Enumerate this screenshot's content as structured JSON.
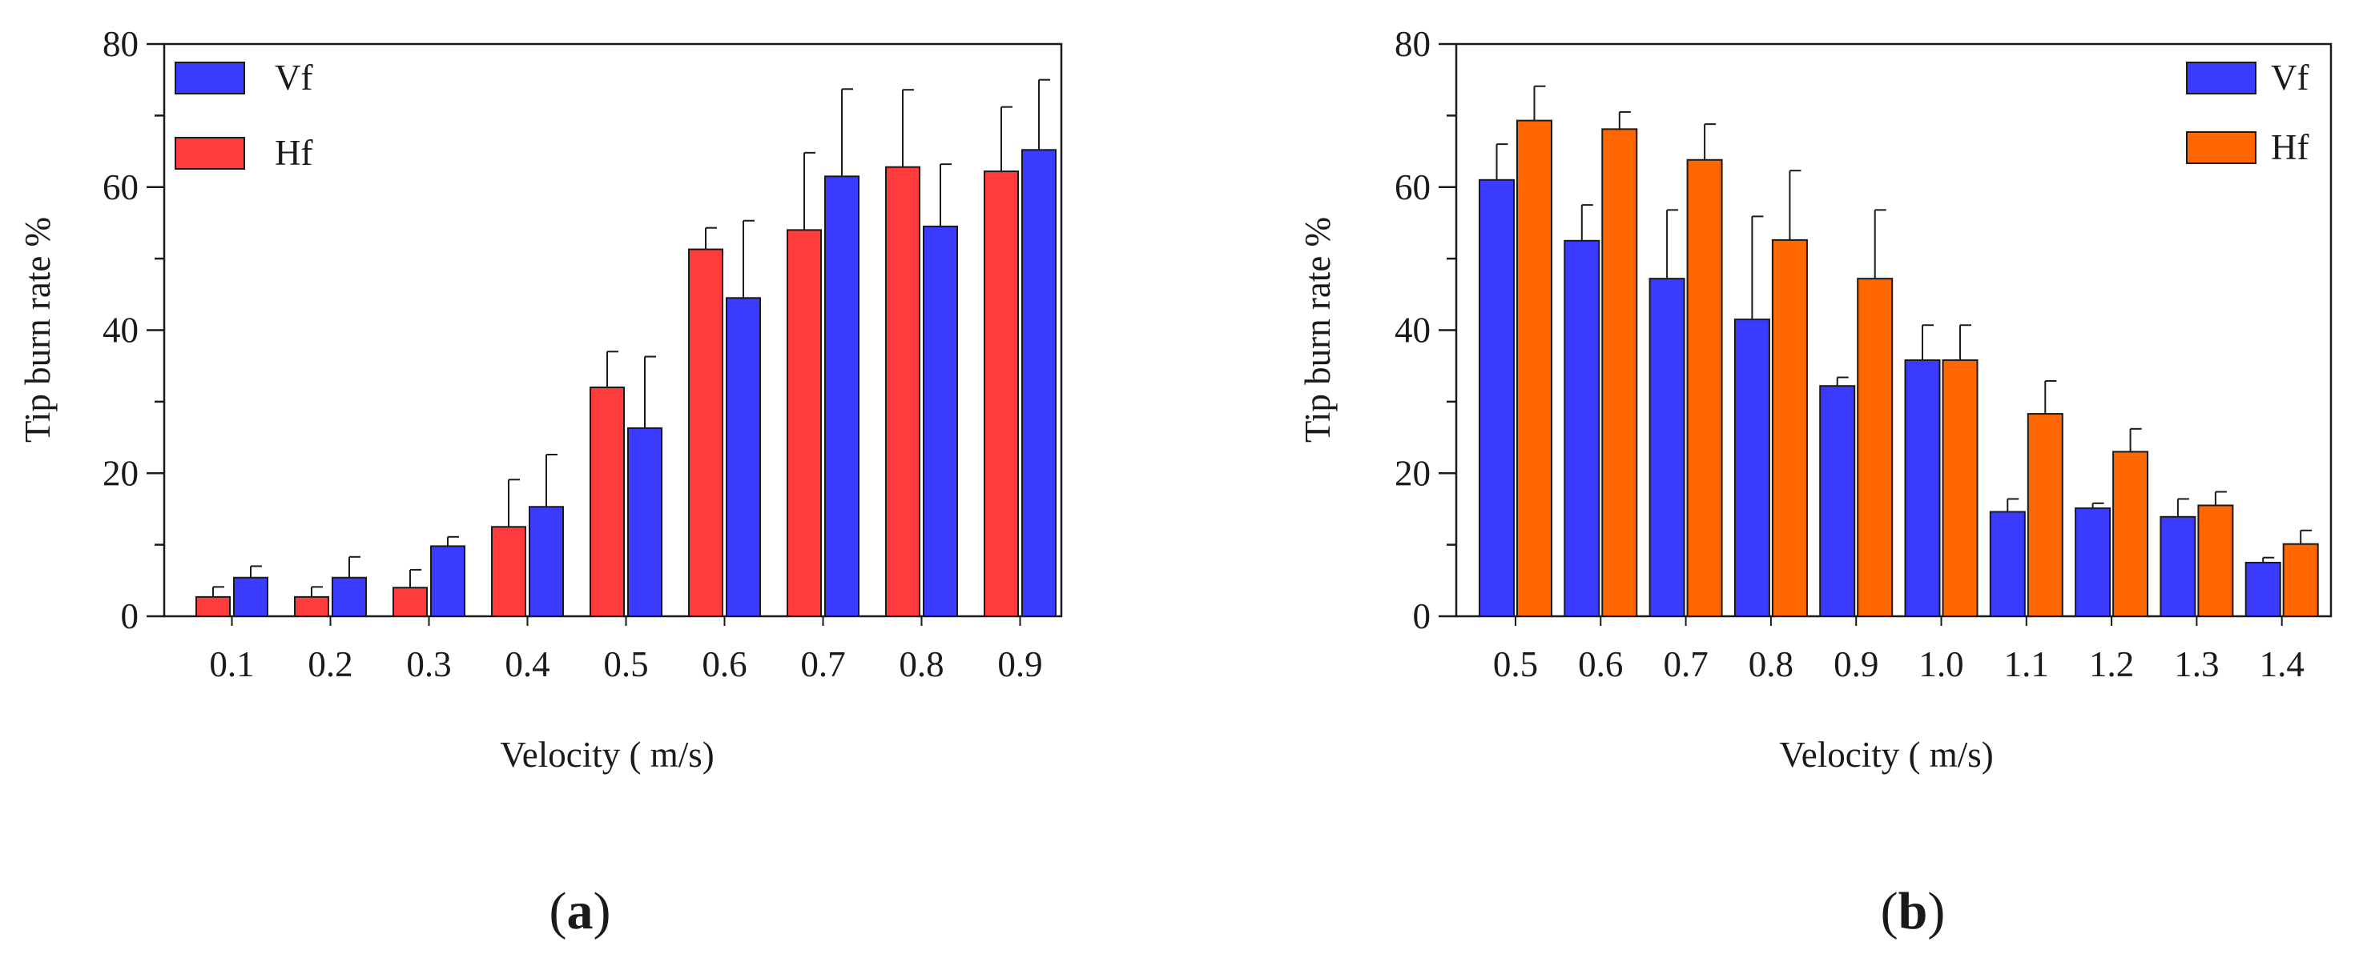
{
  "chart_data": [
    {
      "type": "bar",
      "panel_label": "a",
      "title": "",
      "xlabel": "Velocity ( m/s)",
      "ylabel": "Tip burn rate %",
      "ylim": [
        0,
        80
      ],
      "yticks": [
        0,
        20,
        40,
        60,
        80
      ],
      "categories": [
        "0.1",
        "0.2",
        "0.3",
        "0.4",
        "0.5",
        "0.6",
        "0.7",
        "0.8",
        "0.9"
      ],
      "legend_position": "top-left",
      "series": [
        {
          "name": "Hf",
          "color": "#ff3b3b",
          "values": [
            2.7,
            2.7,
            4.0,
            12.5,
            32.0,
            51.3,
            54.0,
            62.8,
            62.2
          ],
          "error": [
            1.4,
            1.4,
            2.5,
            6.6,
            5.0,
            3.0,
            10.8,
            10.8,
            9.0
          ]
        },
        {
          "name": "Vf",
          "color": "#3b3bff",
          "values": [
            5.4,
            5.4,
            9.8,
            15.3,
            26.3,
            44.5,
            61.5,
            54.5,
            65.2
          ],
          "error": [
            1.6,
            2.9,
            1.3,
            7.3,
            10.0,
            10.8,
            12.2,
            8.7,
            9.8
          ]
        }
      ]
    },
    {
      "type": "bar",
      "panel_label": "b",
      "title": "",
      "xlabel": "Velocity ( m/s)",
      "ylabel": "Tip burn rate %",
      "ylim": [
        0,
        80
      ],
      "yticks": [
        0,
        20,
        40,
        60,
        80
      ],
      "categories": [
        "0.5",
        "0.6",
        "0.7",
        "0.8",
        "0.9",
        "1.0",
        "1.1",
        "1.2",
        "1.3",
        "1.4"
      ],
      "legend_position": "top-right",
      "series": [
        {
          "name": "Vf",
          "color": "#3b3bff",
          "values": [
            61.0,
            52.5,
            47.2,
            41.5,
            32.2,
            35.8,
            14.6,
            15.1,
            13.9,
            7.5
          ],
          "error": [
            5.0,
            5.0,
            9.6,
            14.4,
            1.2,
            4.9,
            1.8,
            0.7,
            2.5,
            0.7
          ]
        },
        {
          "name": "Hf",
          "color": "#ff6600",
          "values": [
            69.3,
            68.1,
            63.8,
            52.6,
            47.2,
            35.8,
            28.3,
            23.0,
            15.5,
            10.1
          ],
          "error": [
            4.8,
            2.4,
            5.0,
            9.7,
            9.6,
            4.9,
            4.6,
            3.2,
            1.9,
            1.9
          ]
        }
      ]
    }
  ]
}
